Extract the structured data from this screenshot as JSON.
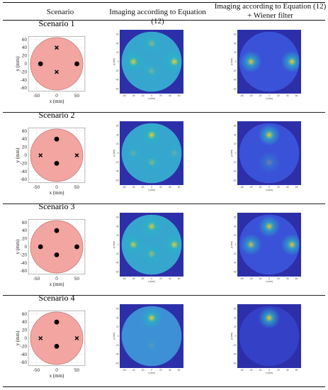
{
  "header": {
    "col1": "Scenario",
    "col2": "Imaging according to Equation (12)",
    "col3_line1": "Imaging according to Equation (12)",
    "col3_line2": "+ Wiener filter"
  },
  "scenarios": [
    {
      "title": "Scenario 1",
      "dots": [
        [
          -40,
          0
        ],
        [
          50,
          0
        ]
      ],
      "crosses": [
        [
          0,
          40
        ],
        [
          0,
          -20
        ]
      ]
    },
    {
      "title": "Scenario 2",
      "dots": [
        [
          0,
          40
        ],
        [
          0,
          -20
        ]
      ],
      "crosses": [
        [
          -40,
          0
        ],
        [
          50,
          0
        ]
      ]
    },
    {
      "title": "Scenario 3",
      "dots": [
        [
          -40,
          0
        ],
        [
          0,
          40
        ],
        [
          0,
          -20
        ],
        [
          50,
          0
        ]
      ],
      "crosses": []
    },
    {
      "title": "Scenario 4",
      "dots": [
        [
          0,
          40
        ],
        [
          0,
          -20
        ]
      ],
      "crosses": [
        [
          -40,
          0
        ],
        [
          50,
          0
        ]
      ]
    }
  ],
  "diagram_axes": {
    "xlabel": "x (mm)",
    "ylabel": "y (mm)",
    "xticks": [
      "-50",
      "0",
      "50"
    ],
    "yticks": [
      "60",
      "40",
      "20",
      "0",
      "-20",
      "-40",
      "-60"
    ]
  },
  "map_axes": {
    "xlabel": "x (mm)",
    "ylabel": "y (mm)",
    "xticks": [
      "-60",
      "-40",
      "-20",
      "0",
      "20",
      "40",
      "60"
    ],
    "yticks": [
      "60",
      "40",
      "20",
      "0",
      "-20",
      "-40",
      "-60"
    ]
  },
  "colors": {
    "disk_fill": "#f2a5a1",
    "map_background": "#2d2fa8",
    "map_low": "#3a52d8",
    "map_mid": "#28b4c4",
    "map_high": "#f0cf2a"
  }
}
